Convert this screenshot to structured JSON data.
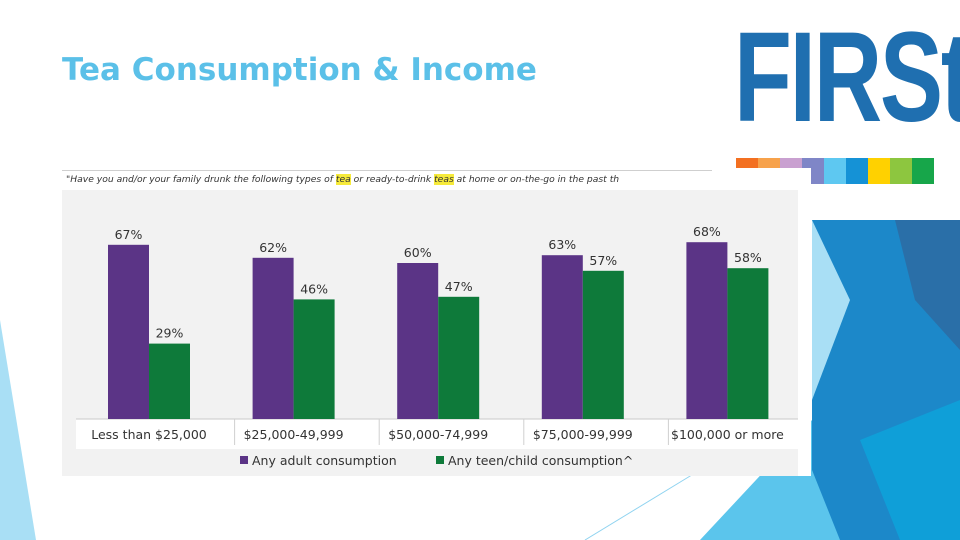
{
  "slide": {
    "title": "Tea Consumption & Income"
  },
  "logo": {
    "text": "FIRSt",
    "color": "#1f6fb0",
    "strip_colors": [
      "#f37021",
      "#f7a24b",
      "#c9a0d0",
      "#7f86c7",
      "#5ec8f1",
      "#1592d6",
      "#ffd100",
      "#8dc63f",
      "#17a64a"
    ]
  },
  "question": {
    "parts": [
      {
        "text": "\"Have you and/or your family drunk the following types of ",
        "hl": false
      },
      {
        "text": "tea",
        "hl": true
      },
      {
        "text": " or ready-to-drink ",
        "hl": false
      },
      {
        "text": "teas",
        "hl": true
      },
      {
        "text": " at home or on-the-go in the past th",
        "hl": false
      }
    ]
  },
  "chart_data": {
    "type": "bar",
    "title": "",
    "xlabel": "",
    "ylabel": "",
    "ylim": [
      0,
      80
    ],
    "grid": false,
    "legend": "bottom",
    "categories": [
      "Less than $25,000",
      "$25,000-49,999",
      "$50,000-74,999",
      "$75,000-99,999",
      "$100,000 or more"
    ],
    "series": [
      {
        "name": "Any adult consumption",
        "color": "#5b3486",
        "values": [
          67,
          62,
          60,
          63,
          68
        ],
        "labels": [
          "67%",
          "62%",
          "60%",
          "63%",
          "68%"
        ]
      },
      {
        "name": "Any teen/child consumption^",
        "color": "#0e7a3a",
        "values": [
          29,
          46,
          47,
          57,
          58
        ],
        "labels": [
          "29%",
          "46%",
          "47%",
          "57%",
          "58%"
        ]
      }
    ]
  },
  "theme": {
    "title_color": "#5bc0e8",
    "deco_colors": [
      "#0f9fd8",
      "#5bc5ec",
      "#a9dff5",
      "#2a6fa8",
      "#1c88c9"
    ]
  }
}
